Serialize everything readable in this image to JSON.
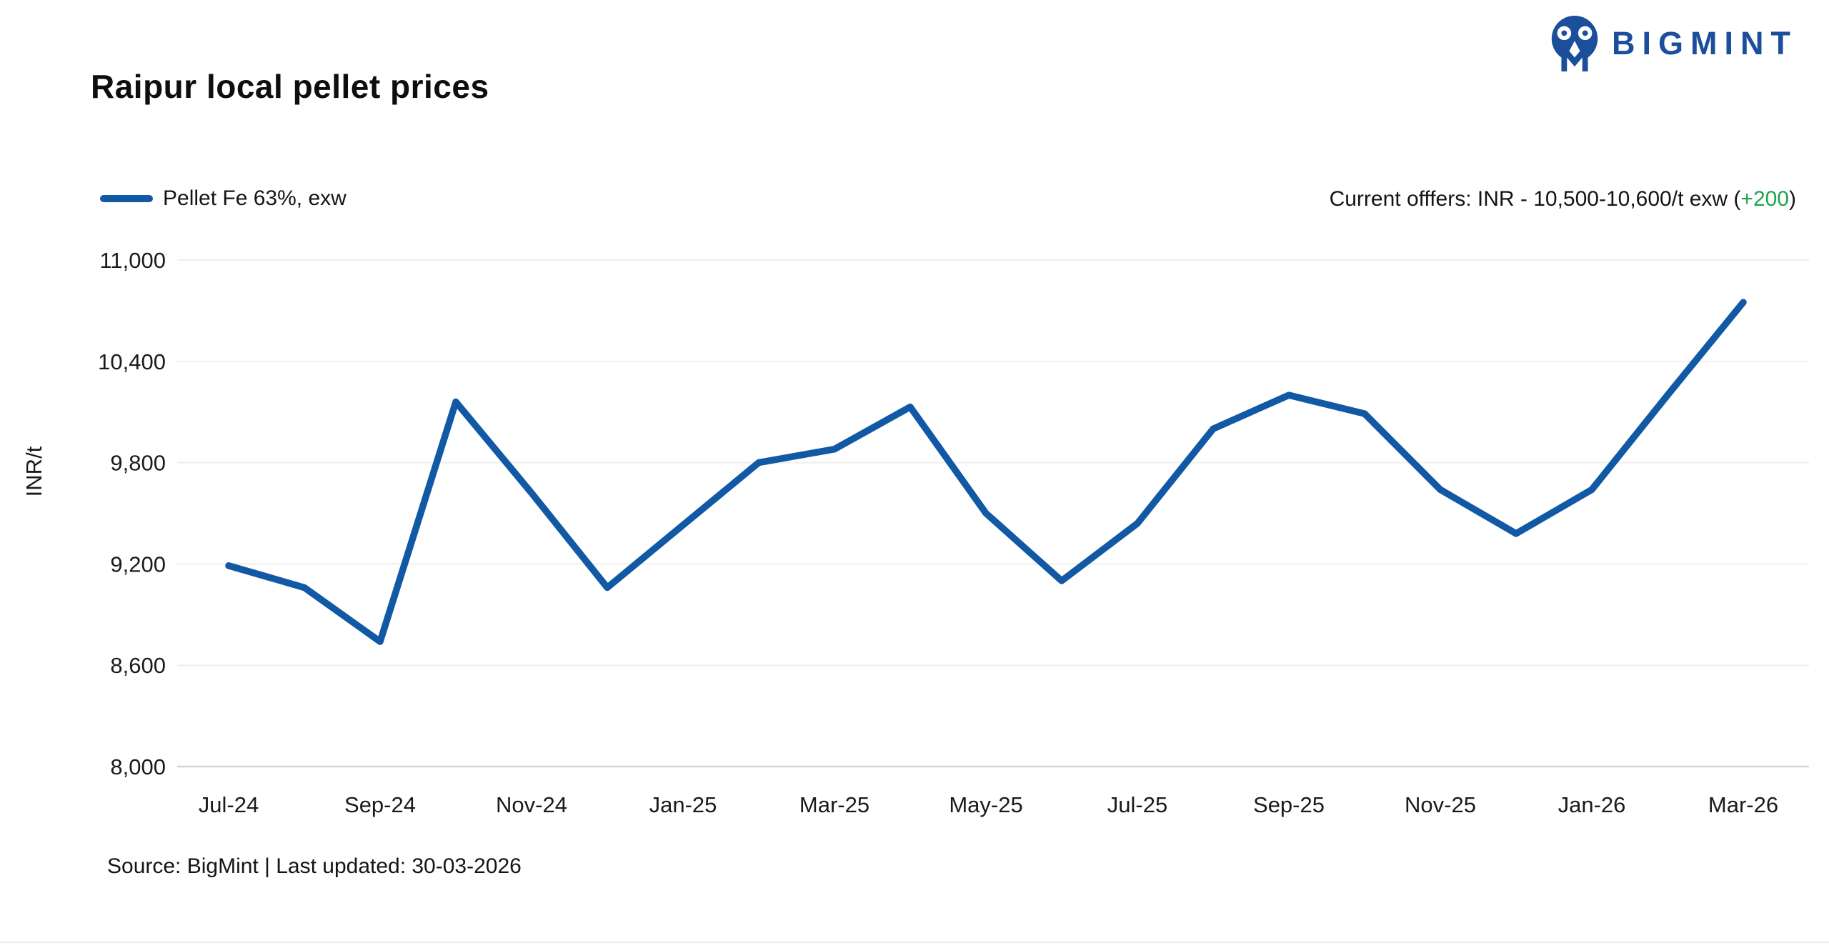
{
  "header": {
    "title": "Raipur local pellet prices",
    "logo_text": "BIGMINT",
    "logo_color": "#1b4e9b"
  },
  "legend": {
    "series_label": "Pellet Fe 63%, exw",
    "swatch_color": "#1158a5"
  },
  "offers": {
    "prefix": "Current offfers: INR - 10,500-10,600/t exw (",
    "change": "+200",
    "suffix": ")",
    "change_color": "#1ea44f"
  },
  "footer": {
    "source": "Source: BigMint | Last updated: 30-03-2026"
  },
  "chart_data": {
    "type": "line",
    "title": "Raipur local pellet prices",
    "xlabel": "",
    "ylabel": "INR/t",
    "categories": [
      "Jul-24",
      "Aug-24",
      "Sep-24",
      "Oct-24",
      "Nov-24",
      "Dec-24",
      "Jan-25",
      "Feb-25",
      "Mar-25",
      "Apr-25",
      "May-25",
      "Jun-25",
      "Jul-25",
      "Aug-25",
      "Sep-25",
      "Oct-25",
      "Nov-25",
      "Dec-25",
      "Jan-26",
      "Feb-26",
      "Mar-26"
    ],
    "x_tick_every": 2,
    "x_tick_labels": [
      "Jul-24",
      "Sep-24",
      "Nov-24",
      "Jan-25",
      "Mar-25",
      "May-25",
      "Jul-25",
      "Sep-25",
      "Nov-25",
      "Jan-26",
      "Mar-26"
    ],
    "series": [
      {
        "name": "Pellet Fe 63%, exw",
        "color": "#1158a5",
        "values": [
          9190,
          9060,
          8740,
          10160,
          9620,
          9060,
          9430,
          9800,
          9880,
          10130,
          9500,
          9100,
          9440,
          10000,
          10200,
          10090,
          9640,
          9380,
          9640,
          10200,
          10750
        ]
      }
    ],
    "y_ticks": [
      8000,
      8600,
      9200,
      9800,
      10400,
      11000
    ],
    "ylim": [
      8000,
      11000
    ],
    "grid": "horizontal",
    "legend_position": "top-left"
  }
}
